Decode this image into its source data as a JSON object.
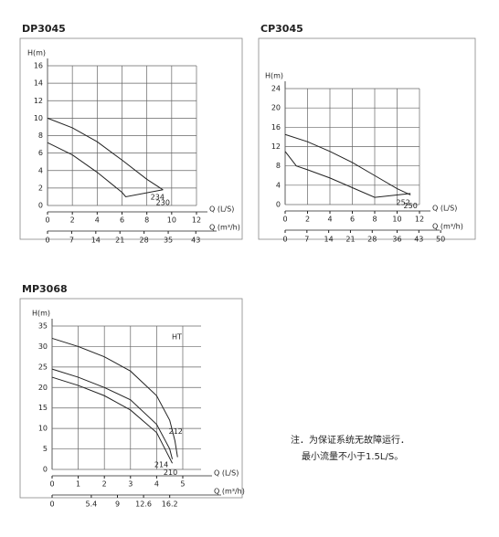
{
  "chart_data": [
    {
      "type": "line",
      "title": "DP3045",
      "ylabel": "H(m)",
      "xlabel": "Q (L/S)",
      "x2label": "Q (m³/h)",
      "xlim": [
        0,
        12
      ],
      "xticks": [
        0,
        2,
        4,
        6,
        8,
        10,
        12
      ],
      "ylim": [
        0,
        16
      ],
      "yticks": [
        0,
        2,
        4,
        6,
        8,
        10,
        12,
        14,
        16
      ],
      "x2lim": [
        0,
        43.2
      ],
      "x2ticks": [
        0,
        7,
        14,
        21,
        28,
        35,
        43
      ],
      "grid": true,
      "color": "#222",
      "series": [
        {
          "name": "230",
          "x": [
            0,
            2,
            4,
            6,
            8,
            9.3
          ],
          "values": [
            10,
            8.9,
            7.3,
            5.2,
            3,
            1.8
          ]
        },
        {
          "name": "234",
          "x": [
            0,
            2,
            4,
            6,
            6.3,
            9.3
          ],
          "values": [
            7.2,
            5.8,
            3.8,
            1.5,
            1,
            1.8
          ]
        }
      ]
    },
    {
      "type": "line",
      "title": "CP3045",
      "ylabel": "H(m)",
      "xlabel": "Q (L/S)",
      "x2label": "Q (m³/h)",
      "xlim": [
        0,
        12
      ],
      "xticks": [
        0,
        2,
        4,
        6,
        8,
        10,
        12
      ],
      "ylim": [
        0,
        24
      ],
      "yticks": [
        0,
        4,
        8,
        12,
        16,
        20,
        24
      ],
      "x2lim": [
        0,
        43.2
      ],
      "x2ticks": [
        0,
        7,
        14,
        21,
        28,
        36,
        43,
        50
      ],
      "grid": true,
      "color": "#222",
      "series": [
        {
          "name": "250",
          "x": [
            0,
            2,
            4,
            6,
            8,
            10,
            11.2
          ],
          "values": [
            14.5,
            13,
            11,
            8.7,
            6,
            3.3,
            2
          ]
        },
        {
          "name": "252",
          "x": [
            0,
            1,
            2,
            4,
            6,
            8,
            11.2
          ],
          "values": [
            11,
            8,
            7.2,
            5.5,
            3.5,
            1.5,
            2.3
          ]
        }
      ]
    },
    {
      "type": "line",
      "title": "MP3068",
      "ylabel": "H(m)",
      "xlabel": "Q (L/S)",
      "x2label": "Q (m³/h)",
      "annotation": "HT",
      "xlim": [
        0,
        5.7
      ],
      "xticks": [
        0,
        1,
        2,
        3,
        4,
        5
      ],
      "ylim": [
        0,
        35
      ],
      "yticks": [
        0,
        5,
        10,
        15,
        20,
        25,
        30,
        35
      ],
      "x2lim": [
        0,
        20.52
      ],
      "x2ticks": [
        0,
        5.4,
        9,
        12.6,
        16.2
      ],
      "grid": true,
      "color": "#222",
      "series": [
        {
          "name": "212",
          "x": [
            0,
            1,
            2,
            3,
            4,
            4.5,
            4.7,
            4.8
          ],
          "values": [
            32,
            30,
            27.5,
            24,
            18,
            12,
            7,
            3
          ]
        },
        {
          "name": "214",
          "x": [
            0,
            1,
            2,
            3,
            4,
            4.5,
            4.6
          ],
          "values": [
            24.5,
            22.5,
            20,
            17,
            11,
            5,
            2.5
          ]
        },
        {
          "name": "210",
          "x": [
            0,
            1,
            2,
            3,
            4,
            4.4,
            4.6
          ],
          "values": [
            22.5,
            20.5,
            18,
            14.5,
            9,
            4,
            1.5
          ]
        }
      ]
    }
  ],
  "note": [
    "注．为保证系统无故障运行．",
    "最小流量不小于1.5L/S。"
  ]
}
